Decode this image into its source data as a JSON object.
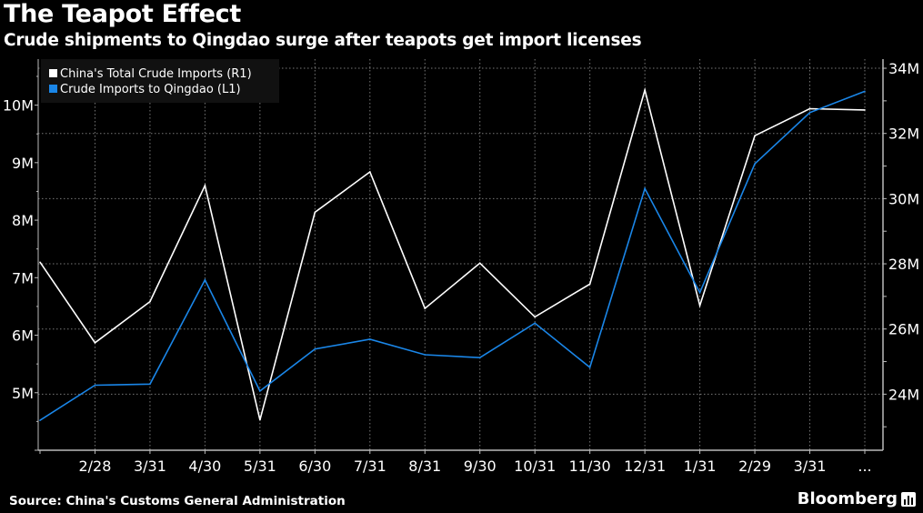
{
  "header": {
    "title": "The Teapot Effect",
    "subtitle": "Crude shipments to Qingdao surge after teapots get import licenses"
  },
  "footer": {
    "source": "Source: China's Customs General Administration",
    "brand": "Bloomberg"
  },
  "chart_data": {
    "type": "line",
    "title": "The Teapot Effect",
    "subtitle": "Crude shipments to Qingdao surge after teapots get import licenses",
    "categories": [
      "",
      "2/28",
      "3/31",
      "4/30",
      "5/31",
      "6/30",
      "7/31",
      "8/31",
      "9/30",
      "10/31",
      "11/30",
      "12/31",
      "1/31",
      "2/29",
      "3/31",
      "..."
    ],
    "left_axis": {
      "ticks": [
        "5M",
        "6M",
        "7M",
        "8M",
        "9M",
        "10M"
      ],
      "tick_values": [
        5,
        6,
        7,
        8,
        9,
        10
      ],
      "range": [
        4,
        10.8
      ],
      "unit": "M"
    },
    "right_axis": {
      "ticks": [
        "24M",
        "26M",
        "28M",
        "30M",
        "32M",
        "34M"
      ],
      "tick_values": [
        24,
        26,
        28,
        30,
        32,
        34
      ],
      "range": [
        22.28,
        34.28
      ],
      "unit": "M"
    },
    "grid": true,
    "legend_position": "top-left",
    "series": [
      {
        "name": "China's Total Crude Imports (R1)",
        "axis": "right",
        "color": "#ffffff",
        "values": [
          28.05,
          25.58,
          26.84,
          30.4,
          23.21,
          29.58,
          30.82,
          26.63,
          28.02,
          26.37,
          27.38,
          33.33,
          26.72,
          31.93,
          32.76,
          32.72
        ]
      },
      {
        "name": "Crude Imports to Qingdao (L1)",
        "axis": "left",
        "color": "#1a86e8",
        "values": [
          4.52,
          5.13,
          5.15,
          6.96,
          5.03,
          5.76,
          5.93,
          5.66,
          5.61,
          6.21,
          5.44,
          8.55,
          6.74,
          8.98,
          9.87,
          10.24
        ]
      }
    ]
  }
}
